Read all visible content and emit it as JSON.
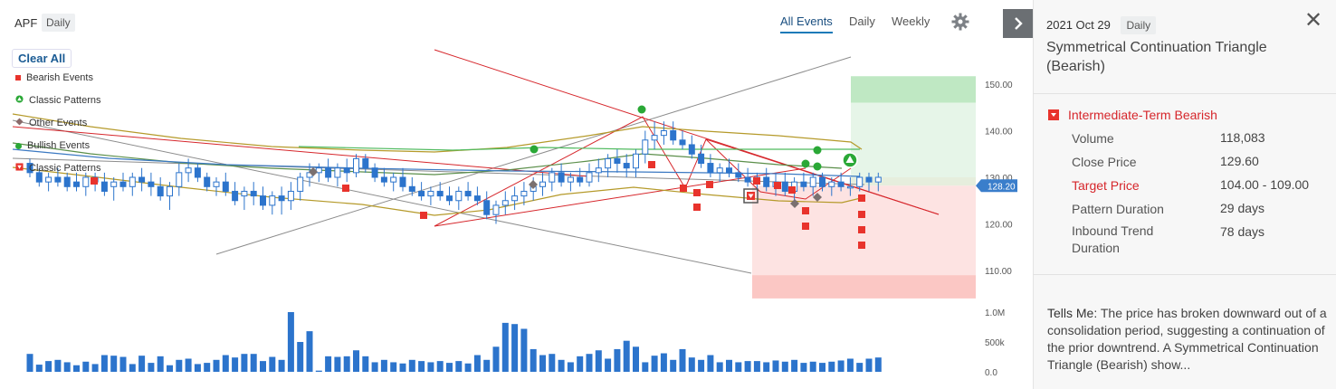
{
  "header": {
    "symbol": "APF",
    "frequency_chip": "Daily",
    "tabs": [
      "All Events",
      "Daily",
      "Weekly"
    ],
    "active_tab": "All Events",
    "settings_icon": "gear-icon"
  },
  "legend": {
    "clear_all": "Clear All",
    "items": [
      {
        "label": "Bearish Events",
        "icon": "red-square-icon",
        "color": "#e8332c"
      },
      {
        "label": "Classic Patterns",
        "icon": "green-triangle-circle-icon",
        "color": "#2aa836"
      },
      {
        "label": "Other Events",
        "icon": "gray-diamond-icon",
        "color": "#8a6a6a"
      },
      {
        "label": "Bullish Events",
        "icon": "green-dot-icon",
        "color": "#2aa836"
      },
      {
        "label": "Classic Patterns",
        "icon": "red-triangle-box-icon",
        "color": "#e8332c"
      }
    ]
  },
  "price_axis": {
    "ticks": [
      "150.00",
      "140.00",
      "130.00",
      "120.00",
      "110.00"
    ],
    "current_price_label": "128.20"
  },
  "volume_axis": {
    "ticks": [
      "1.0M",
      "500k",
      "0.0"
    ]
  },
  "chart_data": {
    "type": "candlestick",
    "price_ylim": [
      103,
      156
    ],
    "volume_ylim": [
      0,
      1000000
    ],
    "current_price": 128.2,
    "candles": [
      {
        "o": 133,
        "h": 134,
        "l": 130,
        "c": 131,
        "v": 300000
      },
      {
        "o": 131,
        "h": 132,
        "l": 128,
        "c": 129,
        "v": 120000
      },
      {
        "o": 129,
        "h": 131,
        "l": 127,
        "c": 130,
        "v": 180000
      },
      {
        "o": 130,
        "h": 132,
        "l": 128,
        "c": 129,
        "v": 200000
      },
      {
        "o": 130,
        "h": 131,
        "l": 127,
        "c": 128,
        "v": 160000
      },
      {
        "o": 129,
        "h": 131,
        "l": 127,
        "c": 128,
        "v": 110000
      },
      {
        "o": 128,
        "h": 131,
        "l": 126,
        "c": 130,
        "v": 170000
      },
      {
        "o": 130,
        "h": 131,
        "l": 127,
        "c": 129,
        "v": 130000
      },
      {
        "o": 129,
        "h": 131,
        "l": 126,
        "c": 127,
        "v": 280000
      },
      {
        "o": 128,
        "h": 130,
        "l": 125,
        "c": 129,
        "v": 270000
      },
      {
        "o": 129,
        "h": 131,
        "l": 127,
        "c": 128,
        "v": 250000
      },
      {
        "o": 128,
        "h": 131,
        "l": 126,
        "c": 130,
        "v": 130000
      },
      {
        "o": 130,
        "h": 132,
        "l": 127,
        "c": 129,
        "v": 270000
      },
      {
        "o": 129,
        "h": 131,
        "l": 126,
        "c": 128,
        "v": 150000
      },
      {
        "o": 128,
        "h": 130,
        "l": 125,
        "c": 126,
        "v": 260000
      },
      {
        "o": 126,
        "h": 129,
        "l": 123,
        "c": 128,
        "v": 110000
      },
      {
        "o": 128,
        "h": 133,
        "l": 126,
        "c": 131,
        "v": 200000
      },
      {
        "o": 131,
        "h": 134,
        "l": 129,
        "c": 132,
        "v": 220000
      },
      {
        "o": 132,
        "h": 133,
        "l": 129,
        "c": 130,
        "v": 130000
      },
      {
        "o": 130,
        "h": 131,
        "l": 127,
        "c": 128,
        "v": 150000
      },
      {
        "o": 128,
        "h": 130,
        "l": 126,
        "c": 129,
        "v": 200000
      },
      {
        "o": 129,
        "h": 131,
        "l": 126,
        "c": 127,
        "v": 280000
      },
      {
        "o": 127,
        "h": 129,
        "l": 124,
        "c": 125,
        "v": 240000
      },
      {
        "o": 126,
        "h": 128,
        "l": 123,
        "c": 127,
        "v": 300000
      },
      {
        "o": 127,
        "h": 129,
        "l": 124,
        "c": 126,
        "v": 300000
      },
      {
        "o": 126,
        "h": 128,
        "l": 123,
        "c": 124,
        "v": 180000
      },
      {
        "o": 124,
        "h": 127,
        "l": 122,
        "c": 126,
        "v": 250000
      },
      {
        "o": 126,
        "h": 128,
        "l": 122,
        "c": 125,
        "v": 200000
      },
      {
        "o": 125,
        "h": 129,
        "l": 123,
        "c": 127,
        "v": 1000000
      },
      {
        "o": 127,
        "h": 131,
        "l": 125,
        "c": 130,
        "v": 500000
      },
      {
        "o": 130,
        "h": 133,
        "l": 128,
        "c": 131,
        "v": 680000
      },
      {
        "o": 131,
        "h": 133,
        "l": 129,
        "c": 132,
        "v": 20000
      },
      {
        "o": 132,
        "h": 134,
        "l": 129,
        "c": 130,
        "v": 260000
      },
      {
        "o": 130,
        "h": 133,
        "l": 128,
        "c": 132,
        "v": 250000
      },
      {
        "o": 132,
        "h": 134,
        "l": 129,
        "c": 131,
        "v": 260000
      },
      {
        "o": 131,
        "h": 135,
        "l": 130,
        "c": 134,
        "v": 360000
      },
      {
        "o": 134,
        "h": 135,
        "l": 131,
        "c": 132,
        "v": 260000
      },
      {
        "o": 132,
        "h": 133,
        "l": 129,
        "c": 130,
        "v": 160000
      },
      {
        "o": 130,
        "h": 132,
        "l": 128,
        "c": 129,
        "v": 200000
      },
      {
        "o": 129,
        "h": 131,
        "l": 127,
        "c": 130,
        "v": 160000
      },
      {
        "o": 130,
        "h": 132,
        "l": 127,
        "c": 128,
        "v": 140000
      },
      {
        "o": 128,
        "h": 130,
        "l": 126,
        "c": 127,
        "v": 200000
      },
      {
        "o": 127,
        "h": 129,
        "l": 125,
        "c": 126,
        "v": 180000
      },
      {
        "o": 126,
        "h": 128,
        "l": 124,
        "c": 127,
        "v": 160000
      },
      {
        "o": 127,
        "h": 129,
        "l": 125,
        "c": 126,
        "v": 180000
      },
      {
        "o": 126,
        "h": 128,
        "l": 124,
        "c": 125,
        "v": 150000
      },
      {
        "o": 125,
        "h": 128,
        "l": 123,
        "c": 127,
        "v": 180000
      },
      {
        "o": 127,
        "h": 129,
        "l": 125,
        "c": 126,
        "v": 140000
      },
      {
        "o": 126,
        "h": 128,
        "l": 124,
        "c": 125,
        "v": 280000
      },
      {
        "o": 125,
        "h": 127,
        "l": 121,
        "c": 122,
        "v": 200000
      },
      {
        "o": 122,
        "h": 125,
        "l": 120,
        "c": 124,
        "v": 420000
      },
      {
        "o": 124,
        "h": 127,
        "l": 122,
        "c": 125,
        "v": 820000
      },
      {
        "o": 125,
        "h": 128,
        "l": 123,
        "c": 126,
        "v": 800000
      },
      {
        "o": 126,
        "h": 129,
        "l": 124,
        "c": 127,
        "v": 720000
      },
      {
        "o": 127,
        "h": 130,
        "l": 125,
        "c": 128,
        "v": 380000
      },
      {
        "o": 128,
        "h": 131,
        "l": 126,
        "c": 129,
        "v": 280000
      },
      {
        "o": 129,
        "h": 132,
        "l": 127,
        "c": 131,
        "v": 300000
      },
      {
        "o": 131,
        "h": 133,
        "l": 128,
        "c": 129,
        "v": 200000
      },
      {
        "o": 129,
        "h": 131,
        "l": 127,
        "c": 130,
        "v": 160000
      },
      {
        "o": 130,
        "h": 132,
        "l": 128,
        "c": 129,
        "v": 260000
      },
      {
        "o": 129,
        "h": 133,
        "l": 128,
        "c": 131,
        "v": 300000
      },
      {
        "o": 131,
        "h": 134,
        "l": 129,
        "c": 132,
        "v": 360000
      },
      {
        "o": 132,
        "h": 135,
        "l": 130,
        "c": 134,
        "v": 220000
      },
      {
        "o": 134,
        "h": 136,
        "l": 131,
        "c": 133,
        "v": 380000
      },
      {
        "o": 133,
        "h": 135,
        "l": 130,
        "c": 132,
        "v": 520000
      },
      {
        "o": 132,
        "h": 136,
        "l": 130,
        "c": 135,
        "v": 420000
      },
      {
        "o": 135,
        "h": 140,
        "l": 133,
        "c": 138,
        "v": 160000
      },
      {
        "o": 138,
        "h": 142,
        "l": 136,
        "c": 139,
        "v": 270000
      },
      {
        "o": 139,
        "h": 142,
        "l": 137,
        "c": 140,
        "v": 310000
      },
      {
        "o": 140,
        "h": 142,
        "l": 137,
        "c": 138,
        "v": 200000
      },
      {
        "o": 138,
        "h": 140,
        "l": 136,
        "c": 137,
        "v": 380000
      },
      {
        "o": 137,
        "h": 139,
        "l": 134,
        "c": 135,
        "v": 240000
      },
      {
        "o": 135,
        "h": 137,
        "l": 132,
        "c": 133,
        "v": 200000
      },
      {
        "o": 133,
        "h": 135,
        "l": 130,
        "c": 131,
        "v": 280000
      },
      {
        "o": 131,
        "h": 133,
        "l": 129,
        "c": 132,
        "v": 160000
      },
      {
        "o": 132,
        "h": 134,
        "l": 130,
        "c": 131,
        "v": 200000
      },
      {
        "o": 131,
        "h": 133,
        "l": 129,
        "c": 130,
        "v": 160000
      },
      {
        "o": 130,
        "h": 132,
        "l": 128,
        "c": 129,
        "v": 180000
      },
      {
        "o": 129,
        "h": 131,
        "l": 127,
        "c": 130,
        "v": 180000
      },
      {
        "o": 130,
        "h": 132,
        "l": 127,
        "c": 128,
        "v": 160000
      },
      {
        "o": 128,
        "h": 131,
        "l": 126,
        "c": 129,
        "v": 190000
      },
      {
        "o": 129,
        "h": 131,
        "l": 126,
        "c": 127,
        "v": 170000
      },
      {
        "o": 127,
        "h": 130,
        "l": 125,
        "c": 129,
        "v": 200000
      },
      {
        "o": 129,
        "h": 131,
        "l": 127,
        "c": 128,
        "v": 150000
      },
      {
        "o": 128,
        "h": 131,
        "l": 126,
        "c": 130,
        "v": 170000
      },
      {
        "o": 130,
        "h": 131,
        "l": 127,
        "c": 128,
        "v": 150000
      },
      {
        "o": 128,
        "h": 130,
        "l": 126,
        "c": 129,
        "v": 170000
      },
      {
        "o": 129,
        "h": 131,
        "l": 127,
        "c": 128,
        "v": 190000
      },
      {
        "o": 128,
        "h": 130,
        "l": 126,
        "c": 128,
        "v": 220000
      },
      {
        "o": 128,
        "h": 131,
        "l": 127,
        "c": 130,
        "v": 150000
      },
      {
        "o": 130,
        "h": 131,
        "l": 127,
        "c": 129,
        "v": 220000
      },
      {
        "o": 129,
        "h": 131,
        "l": 127,
        "c": 130,
        "v": 240000
      }
    ]
  },
  "panel": {
    "date": "2021 Oct 29",
    "frequency_chip": "Daily",
    "title": "Symmetrical Continuation Triangle (Bearish)",
    "event_type": "Intermediate-Term Bearish",
    "rows": [
      {
        "label": "Volume",
        "value": "118,083"
      },
      {
        "label": "Close Price",
        "value": "129.60"
      },
      {
        "label": "Target Price",
        "value": "104.00 - 109.00"
      },
      {
        "label": "Pattern Duration",
        "value": "29 days"
      },
      {
        "label": "Inbound Trend Duration",
        "value": "78 days"
      }
    ],
    "tells_label": "Tells Me:",
    "tells_text": "The price has broken downward out of a consolidation period, suggesting a continuation of the prior downtrend. A Symmetrical Continuation Triangle (Bearish) show..."
  }
}
